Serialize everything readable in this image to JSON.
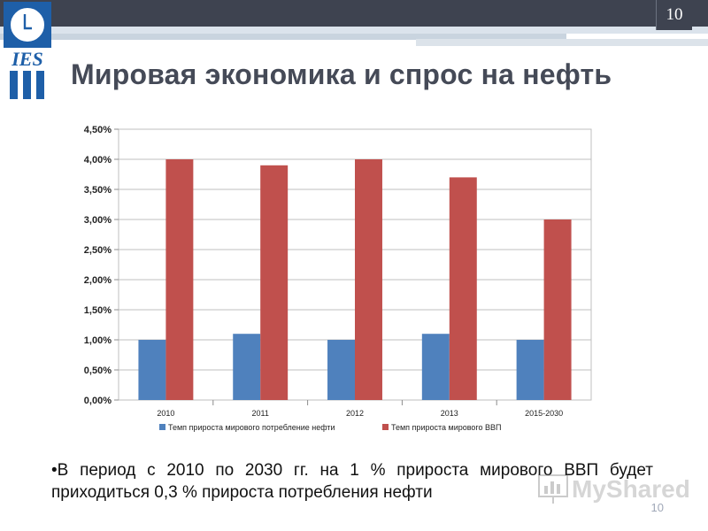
{
  "header": {
    "page_number": "10"
  },
  "logo": {
    "text": "IES"
  },
  "title": "Мировая экономика и спрос на нефть",
  "chart_data": {
    "type": "bar",
    "categories": [
      "2010",
      "2011",
      "2012",
      "2013",
      "2015-2030"
    ],
    "series": [
      {
        "name": "Темп прироста мирового потребление нефти",
        "color": "#4f81bd",
        "values": [
          1.0,
          1.1,
          1.0,
          1.1,
          1.0
        ]
      },
      {
        "name": "Темп прироста  мирового  ВВП",
        "color": "#c0504d",
        "values": [
          4.0,
          3.9,
          4.0,
          3.7,
          3.0
        ]
      }
    ],
    "ylim": [
      0,
      4.5
    ],
    "yticks": [
      "0,00%",
      "0,50%",
      "1,00%",
      "1,50%",
      "2,00%",
      "2,50%",
      "3,00%",
      "3,50%",
      "4,00%",
      "4,50%"
    ],
    "grid": true,
    "legend": "bottom"
  },
  "bullet": "•В период с 2010 по 2030 гг. на 1 % прироста мирового ВВП будет приходиться 0,3 % прироста потребления нефти",
  "footer": {
    "page_number": "10"
  },
  "watermark": {
    "text": "MyShared"
  }
}
